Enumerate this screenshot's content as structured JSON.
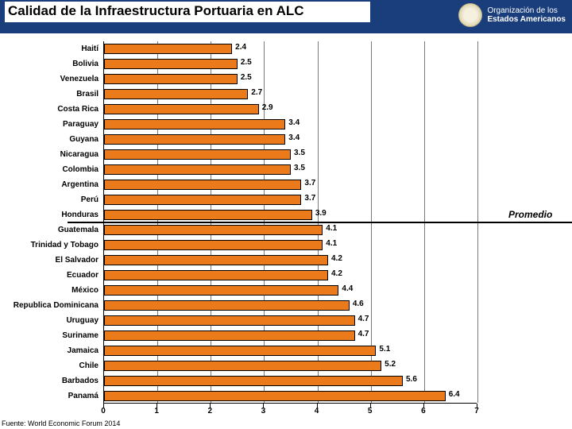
{
  "header": {
    "title": "Calidad de la Infraestructura Portuaria en ALC",
    "org_line1": "Organización de los",
    "org_line2": "Estados Americanos"
  },
  "chart": {
    "type": "bar-horizontal",
    "xlim": [
      0,
      7
    ],
    "xtick_step": 1,
    "xticks": [
      "0",
      "1",
      "2",
      "3",
      "4",
      "5",
      "6",
      "7"
    ],
    "bar_color": "#eb7a1a",
    "bar_border": "#000000",
    "grid_color": "#7a7a7a",
    "background_color": "#ffffff",
    "label_fontsize": 10,
    "value_fontsize": 10,
    "avg_label": "Promedio",
    "avg_position_after_index": 11,
    "categories": [
      {
        "label": "Haití",
        "value": 2.4
      },
      {
        "label": "Bolivia",
        "value": 2.5
      },
      {
        "label": "Venezuela",
        "value": 2.5
      },
      {
        "label": "Brasil",
        "value": 2.7
      },
      {
        "label": "Costa Rica",
        "value": 2.9
      },
      {
        "label": "Paraguay",
        "value": 3.4
      },
      {
        "label": "Guyana",
        "value": 3.4
      },
      {
        "label": "Nicaragua",
        "value": 3.5
      },
      {
        "label": "Colombia",
        "value": 3.5
      },
      {
        "label": "Argentina",
        "value": 3.7
      },
      {
        "label": "Perú",
        "value": 3.7
      },
      {
        "label": "Honduras",
        "value": 3.9
      },
      {
        "label": "Guatemala",
        "value": 4.1
      },
      {
        "label": "Trinidad y Tobago",
        "value": 4.1
      },
      {
        "label": "El Salvador",
        "value": 4.2
      },
      {
        "label": "Ecuador",
        "value": 4.2
      },
      {
        "label": "México",
        "value": 4.4
      },
      {
        "label": "Republica Dominicana",
        "value": 4.6
      },
      {
        "label": "Uruguay",
        "value": 4.7
      },
      {
        "label": "Suriname",
        "value": 4.7
      },
      {
        "label": "Jamaica",
        "value": 5.1
      },
      {
        "label": "Chile",
        "value": 5.2
      },
      {
        "label": "Barbados",
        "value": 5.6
      },
      {
        "label": "Panamá",
        "value": 6.4
      }
    ]
  },
  "source": "Fuente: World Economic Forum 2014"
}
